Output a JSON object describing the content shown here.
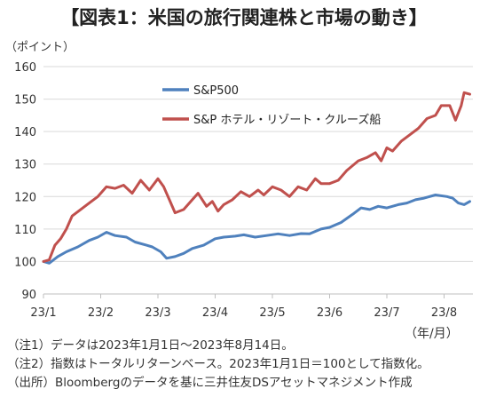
{
  "title": "【図表1：米国の旅行関連株と市場の動き】",
  "chart_data": {
    "type": "line",
    "ylabel": "（ポイント）",
    "xunit": "（年/月）",
    "ylim": [
      90,
      160
    ],
    "yticks": [
      90,
      100,
      110,
      120,
      130,
      140,
      150,
      160
    ],
    "xticks": [
      {
        "label": "23/1",
        "month": 0
      },
      {
        "label": "23/2",
        "month": 1
      },
      {
        "label": "23/3",
        "month": 2
      },
      {
        "label": "23/4",
        "month": 3
      },
      {
        "label": "23/5",
        "month": 4
      },
      {
        "label": "23/6",
        "month": 5
      },
      {
        "label": "23/7",
        "month": 6
      },
      {
        "label": "23/8",
        "month": 7
      }
    ],
    "xmax": 7.45,
    "series": [
      {
        "name": "S&P500",
        "color": "#4f81bd",
        "points": [
          [
            0,
            100
          ],
          [
            0.1,
            99.5
          ],
          [
            0.25,
            101.5
          ],
          [
            0.4,
            103
          ],
          [
            0.6,
            104.5
          ],
          [
            0.8,
            106.5
          ],
          [
            0.95,
            107.5
          ],
          [
            1.1,
            109
          ],
          [
            1.25,
            108
          ],
          [
            1.45,
            107.5
          ],
          [
            1.6,
            106
          ],
          [
            1.8,
            105
          ],
          [
            1.9,
            104.5
          ],
          [
            2.05,
            103
          ],
          [
            2.15,
            101
          ],
          [
            2.3,
            101.5
          ],
          [
            2.45,
            102.5
          ],
          [
            2.6,
            104
          ],
          [
            2.8,
            105
          ],
          [
            3.0,
            107
          ],
          [
            3.15,
            107.5
          ],
          [
            3.35,
            107.8
          ],
          [
            3.5,
            108.2
          ],
          [
            3.7,
            107.5
          ],
          [
            3.9,
            108
          ],
          [
            4.1,
            108.5
          ],
          [
            4.3,
            108
          ],
          [
            4.5,
            108.6
          ],
          [
            4.65,
            108.5
          ],
          [
            4.85,
            110
          ],
          [
            5.0,
            110.5
          ],
          [
            5.2,
            112
          ],
          [
            5.4,
            114.5
          ],
          [
            5.55,
            116.5
          ],
          [
            5.7,
            116
          ],
          [
            5.85,
            117
          ],
          [
            6.0,
            116.5
          ],
          [
            6.2,
            117.5
          ],
          [
            6.35,
            118
          ],
          [
            6.5,
            119
          ],
          [
            6.65,
            119.5
          ],
          [
            6.85,
            120.5
          ],
          [
            7.05,
            120
          ],
          [
            7.15,
            119.5
          ],
          [
            7.25,
            118
          ],
          [
            7.35,
            117.5
          ],
          [
            7.45,
            118.5
          ]
        ]
      },
      {
        "name": "S&P ホテル・リゾート・クルーズ船",
        "color": "#c0504d",
        "points": [
          [
            0,
            100
          ],
          [
            0.1,
            100.5
          ],
          [
            0.2,
            105
          ],
          [
            0.3,
            107
          ],
          [
            0.4,
            110
          ],
          [
            0.5,
            114
          ],
          [
            0.65,
            116
          ],
          [
            0.8,
            118
          ],
          [
            0.95,
            120
          ],
          [
            1.1,
            123
          ],
          [
            1.25,
            122.5
          ],
          [
            1.4,
            123.5
          ],
          [
            1.55,
            121
          ],
          [
            1.7,
            125
          ],
          [
            1.85,
            122
          ],
          [
            2.0,
            125.5
          ],
          [
            2.1,
            123
          ],
          [
            2.2,
            119
          ],
          [
            2.3,
            115
          ],
          [
            2.45,
            116
          ],
          [
            2.6,
            119
          ],
          [
            2.7,
            121
          ],
          [
            2.85,
            117
          ],
          [
            2.95,
            118.5
          ],
          [
            3.05,
            115.5
          ],
          [
            3.15,
            117.5
          ],
          [
            3.3,
            119
          ],
          [
            3.45,
            121.5
          ],
          [
            3.6,
            120
          ],
          [
            3.75,
            122
          ],
          [
            3.85,
            120.5
          ],
          [
            4.0,
            123
          ],
          [
            4.15,
            122
          ],
          [
            4.3,
            120
          ],
          [
            4.45,
            123
          ],
          [
            4.6,
            122
          ],
          [
            4.75,
            125.5
          ],
          [
            4.85,
            124
          ],
          [
            5.0,
            124
          ],
          [
            5.15,
            125
          ],
          [
            5.3,
            128
          ],
          [
            5.5,
            131
          ],
          [
            5.65,
            132
          ],
          [
            5.8,
            133.5
          ],
          [
            5.9,
            131
          ],
          [
            6.0,
            135
          ],
          [
            6.1,
            134
          ],
          [
            6.25,
            137
          ],
          [
            6.4,
            139
          ],
          [
            6.55,
            141
          ],
          [
            6.7,
            144
          ],
          [
            6.85,
            145
          ],
          [
            6.95,
            148
          ],
          [
            7.1,
            148
          ],
          [
            7.2,
            143.5
          ],
          [
            7.3,
            148
          ],
          [
            7.35,
            152
          ],
          [
            7.45,
            151.5
          ]
        ]
      }
    ]
  },
  "notes": [
    "（注1）データは2023年1月1日～2023年8月14日。",
    "（注2）指数はトータルリターンベース。2023年1月1日＝100として指数化。",
    "（出所）Bloombergのデータを基に三井住友DSアセットマネジメント作成"
  ]
}
